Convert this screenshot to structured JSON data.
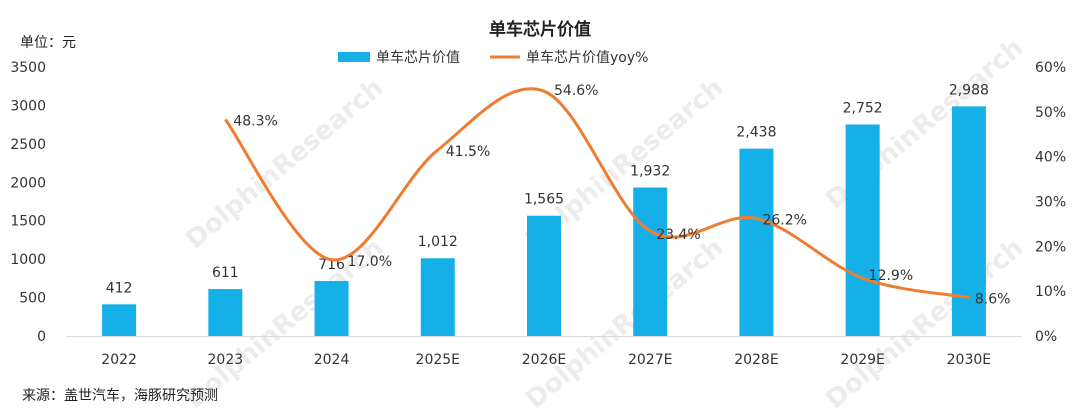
{
  "unit_label": "单位：元",
  "source": "来源：盖世汽车，海豚研究预测",
  "watermark": "DolphinResearch",
  "colors": {
    "bar": "#16B0E8",
    "line": "#EE7D31",
    "grid": "#d9d9d9",
    "text": "#333333"
  },
  "chart_data": {
    "type": "bar",
    "title": "单车芯片价值",
    "legend_position": "top",
    "categories": [
      "2022",
      "2023",
      "2024",
      "2025E",
      "2026E",
      "2027E",
      "2028E",
      "2029E",
      "2030E"
    ],
    "series": [
      {
        "name": "单车芯片价值",
        "type": "bar",
        "axis": "left",
        "values": [
          412,
          611,
          716,
          1012,
          1565,
          1932,
          2438,
          2752,
          2988
        ],
        "labels": [
          "412",
          "611",
          "716",
          "1,012",
          "1,565",
          "1,932",
          "2,438",
          "2,752",
          "2,988"
        ]
      },
      {
        "name": "单车芯片价值yoy%",
        "type": "line",
        "axis": "right",
        "values": [
          null,
          48.3,
          17.0,
          41.5,
          54.6,
          23.4,
          26.2,
          12.9,
          8.6
        ],
        "labels": [
          "",
          "48.3%",
          "17.0%",
          "41.5%",
          "54.6%",
          "23.4%",
          "26.2%",
          "12.9%",
          "8.6%"
        ]
      }
    ],
    "y_left": {
      "min": 0,
      "max": 3500,
      "ticks": [
        "0",
        "500",
        "1000",
        "1500",
        "2000",
        "2500",
        "3000",
        "3500"
      ]
    },
    "y_right": {
      "min": 0,
      "max": 60,
      "ticks": [
        "0%",
        "10%",
        "20%",
        "30%",
        "40%",
        "50%",
        "60%"
      ]
    },
    "grid": false
  }
}
